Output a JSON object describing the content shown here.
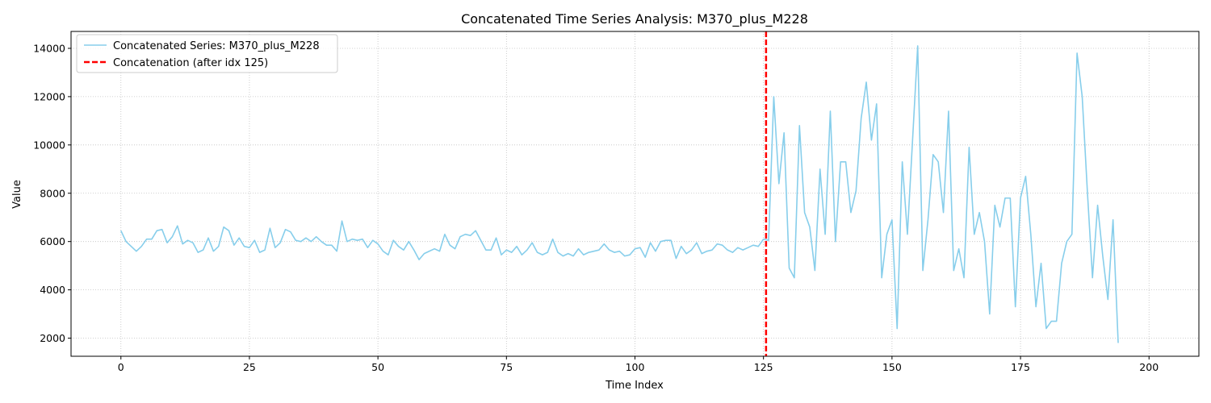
{
  "chart_data": {
    "type": "line",
    "title": "Concatenated Time Series Analysis: M370_plus_M228",
    "xlabel": "Time Index",
    "ylabel": "Value",
    "xlim": [
      -9.7,
      209.7
    ],
    "ylim": [
      1250,
      14700
    ],
    "xticks": [
      0,
      25,
      50,
      75,
      100,
      125,
      150,
      175,
      200
    ],
    "yticks": [
      2000,
      4000,
      6000,
      8000,
      10000,
      12000,
      14000
    ],
    "grid": true,
    "legend_position": "top-left",
    "series": [
      {
        "name": "Concatenated Series: M370_plus_M228",
        "color": "#87ceeb",
        "x_start": 0,
        "values": [
          6450,
          6000,
          5800,
          5600,
          5800,
          6100,
          6100,
          6450,
          6500,
          5950,
          6200,
          6650,
          5900,
          6050,
          5950,
          5550,
          5650,
          6150,
          5600,
          5800,
          6600,
          6450,
          5850,
          6150,
          5800,
          5750,
          6050,
          5550,
          5650,
          6550,
          5750,
          5950,
          6500,
          6400,
          6050,
          6000,
          6150,
          6000,
          6200,
          6000,
          5850,
          5850,
          5600,
          6850,
          6000,
          6100,
          6050,
          6100,
          5750,
          6050,
          5900,
          5600,
          5450,
          6050,
          5800,
          5650,
          6000,
          5650,
          5250,
          5500,
          5600,
          5700,
          5600,
          6300,
          5850,
          5700,
          6200,
          6300,
          6250,
          6450,
          6050,
          5650,
          5650,
          6150,
          5450,
          5650,
          5550,
          5800,
          5450,
          5650,
          5950,
          5550,
          5450,
          5550,
          6100,
          5550,
          5400,
          5500,
          5400,
          5700,
          5450,
          5550,
          5600,
          5650,
          5900,
          5650,
          5550,
          5600,
          5400,
          5450,
          5700,
          5750,
          5350,
          5950,
          5600,
          6000,
          6050,
          6050,
          5300,
          5800,
          5500,
          5650,
          5950,
          5500,
          5600,
          5650,
          5900,
          5850,
          5650,
          5550,
          5750,
          5650,
          5750,
          5850,
          5800,
          6100,
          6050,
          12000,
          8400,
          10500,
          4900,
          4500,
          10800,
          7200,
          6600,
          4800,
          9000,
          6300,
          11400,
          6000,
          9300,
          9300,
          7200,
          8100,
          11100,
          12600,
          10200,
          11700,
          4500,
          6300,
          6900,
          2400,
          9300,
          6300,
          10200,
          14100,
          4800,
          6900,
          9600,
          9300,
          7200,
          11400,
          4800,
          5700,
          4500,
          9900,
          6300,
          7200,
          6000,
          3000,
          7500,
          6600,
          7800,
          7800,
          3300,
          7800,
          8700,
          6300,
          3300,
          5100,
          2400,
          2700,
          2700,
          5100,
          6000,
          6300,
          13800,
          12000,
          8100,
          4500,
          7500,
          5400,
          3600,
          6900,
          1800
        ]
      }
    ],
    "annotations": [
      {
        "name": "Concatenation (after idx 125)",
        "type": "vline",
        "x": 125.5,
        "color": "#ff0000",
        "style": "dashed"
      }
    ]
  }
}
